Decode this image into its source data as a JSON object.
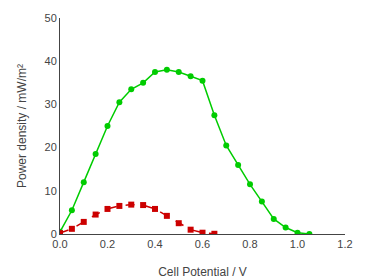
{
  "chart_data": {
    "type": "line",
    "xlabel": "Cell Potential / V",
    "ylabel": "Power density / mW/m²",
    "series": [
      {
        "color": "#00cc00",
        "marker": "circle",
        "line_style": "solid",
        "x": [
          0.0,
          0.05,
          0.1,
          0.15,
          0.2,
          0.25,
          0.3,
          0.35,
          0.4,
          0.45,
          0.5,
          0.55,
          0.6,
          0.65,
          0.7,
          0.75,
          0.8,
          0.85,
          0.9,
          0.95,
          1.0,
          1.05
        ],
        "values": [
          0.5,
          5.5,
          12.0,
          18.5,
          25.0,
          30.5,
          33.5,
          35.0,
          37.5,
          38.0,
          37.5,
          36.5,
          35.5,
          27.5,
          20.5,
          16.0,
          11.5,
          7.5,
          3.5,
          1.5,
          0.3,
          0.0
        ]
      },
      {
        "color": "#cc0000",
        "marker": "square",
        "line_style": "dash",
        "x": [
          0.0,
          0.05,
          0.1,
          0.15,
          0.2,
          0.25,
          0.3,
          0.35,
          0.4,
          0.45,
          0.5,
          0.55,
          0.6,
          0.65
        ],
        "values": [
          0.2,
          1.2,
          2.8,
          4.5,
          5.8,
          6.5,
          6.8,
          6.7,
          5.8,
          4.2,
          2.5,
          1.0,
          0.3,
          0.05
        ]
      }
    ],
    "xlim": [
      0.0,
      1.2
    ],
    "ylim": [
      0,
      50
    ],
    "xticks": [
      {
        "value": 0.0,
        "label": "0.0"
      },
      0.2,
      0.4,
      0.6,
      0.8,
      {
        "value": 1.0,
        "label": "1.0"
      },
      1.2
    ],
    "yticks": [
      0,
      10,
      20,
      30,
      40,
      50
    ],
    "grid": false
  }
}
